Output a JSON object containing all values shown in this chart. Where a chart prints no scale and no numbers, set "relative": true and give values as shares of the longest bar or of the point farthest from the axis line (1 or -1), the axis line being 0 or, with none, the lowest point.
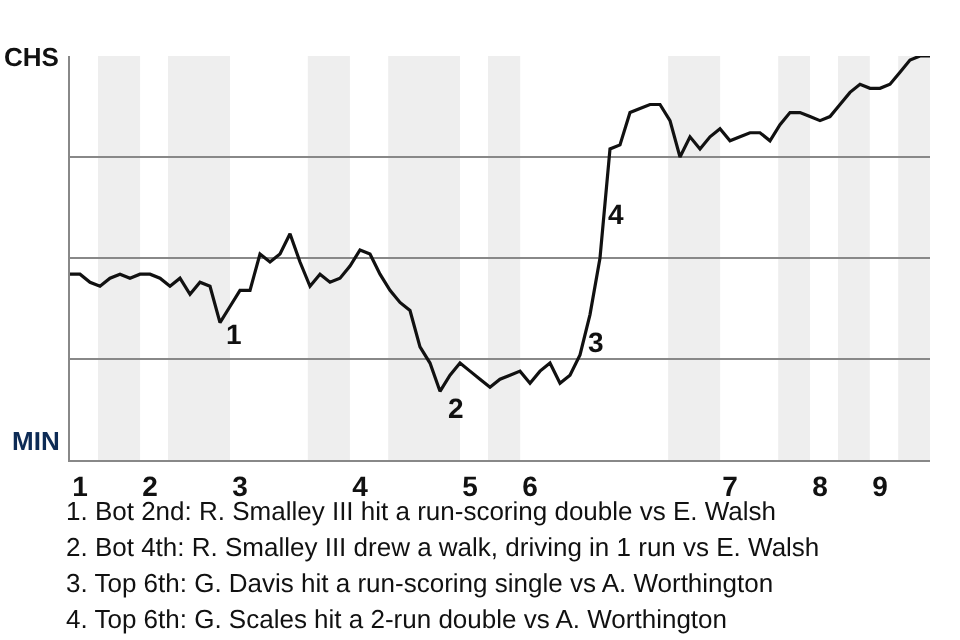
{
  "chart_data": {
    "type": "line",
    "categories": [
      null,
      "1",
      null,
      null,
      null,
      null,
      null,
      null,
      "2",
      null,
      null,
      null,
      null,
      null,
      null,
      null,
      null,
      "3",
      null,
      null,
      null,
      null,
      null,
      null,
      null,
      null,
      null,
      null,
      null,
      "4",
      null,
      null,
      null,
      null,
      null,
      null,
      null,
      null,
      null,
      null,
      "5",
      null,
      null,
      null,
      null,
      null,
      "6",
      null,
      null,
      null,
      null,
      null,
      null,
      null,
      null,
      null,
      null,
      null,
      null,
      null,
      null,
      null,
      null,
      null,
      null,
      null,
      "7",
      null,
      null,
      null,
      null,
      null,
      null,
      null,
      null,
      "8",
      null,
      null,
      null,
      null,
      null,
      "9",
      null,
      null,
      null,
      null,
      null
    ],
    "series": [
      {
        "color": "#111111",
        "values": [
          0.46,
          0.46,
          0.44,
          0.43,
          0.45,
          0.46,
          0.45,
          0.46,
          0.46,
          0.45,
          0.43,
          0.45,
          0.41,
          0.44,
          0.43,
          0.34,
          0.38,
          0.42,
          0.42,
          0.51,
          0.49,
          0.51,
          0.56,
          0.49,
          0.43,
          0.46,
          0.44,
          0.45,
          0.48,
          0.52,
          0.51,
          0.46,
          0.42,
          0.39,
          0.37,
          0.28,
          0.24,
          0.17,
          0.21,
          0.24,
          0.22,
          0.2,
          0.18,
          0.2,
          0.21,
          0.22,
          0.19,
          0.22,
          0.24,
          0.19,
          0.21,
          0.26,
          0.36,
          0.5,
          0.77,
          0.78,
          0.86,
          0.87,
          0.88,
          0.88,
          0.84,
          0.75,
          0.8,
          0.77,
          0.8,
          0.82,
          0.79,
          0.8,
          0.81,
          0.81,
          0.79,
          0.83,
          0.86,
          0.86,
          0.85,
          0.84,
          0.85,
          0.88,
          0.91,
          0.93,
          0.92,
          0.92,
          0.93,
          0.96,
          0.99,
          1.0,
          1
        ]
      }
    ],
    "relative": true,
    "grid": "y",
    "marker": "none",
    "line_style": "solid",
    "legend": false,
    "annotations": [
      "CHS",
      "MIN",
      "1",
      "2",
      "3",
      "4",
      "1. Bot 2nd: R. Smalley III hit a run-scoring double vs E. Walsh",
      "2. Bot 4th: R. Smalley III drew a walk, driving in 1 run vs E. Walsh",
      "3. Top 6th: G. Davis hit a run-scoring single vs A. Worthington",
      "4. Top 6th: G. Scales hit a 2-run double vs A. Worthington"
    ]
  }
}
